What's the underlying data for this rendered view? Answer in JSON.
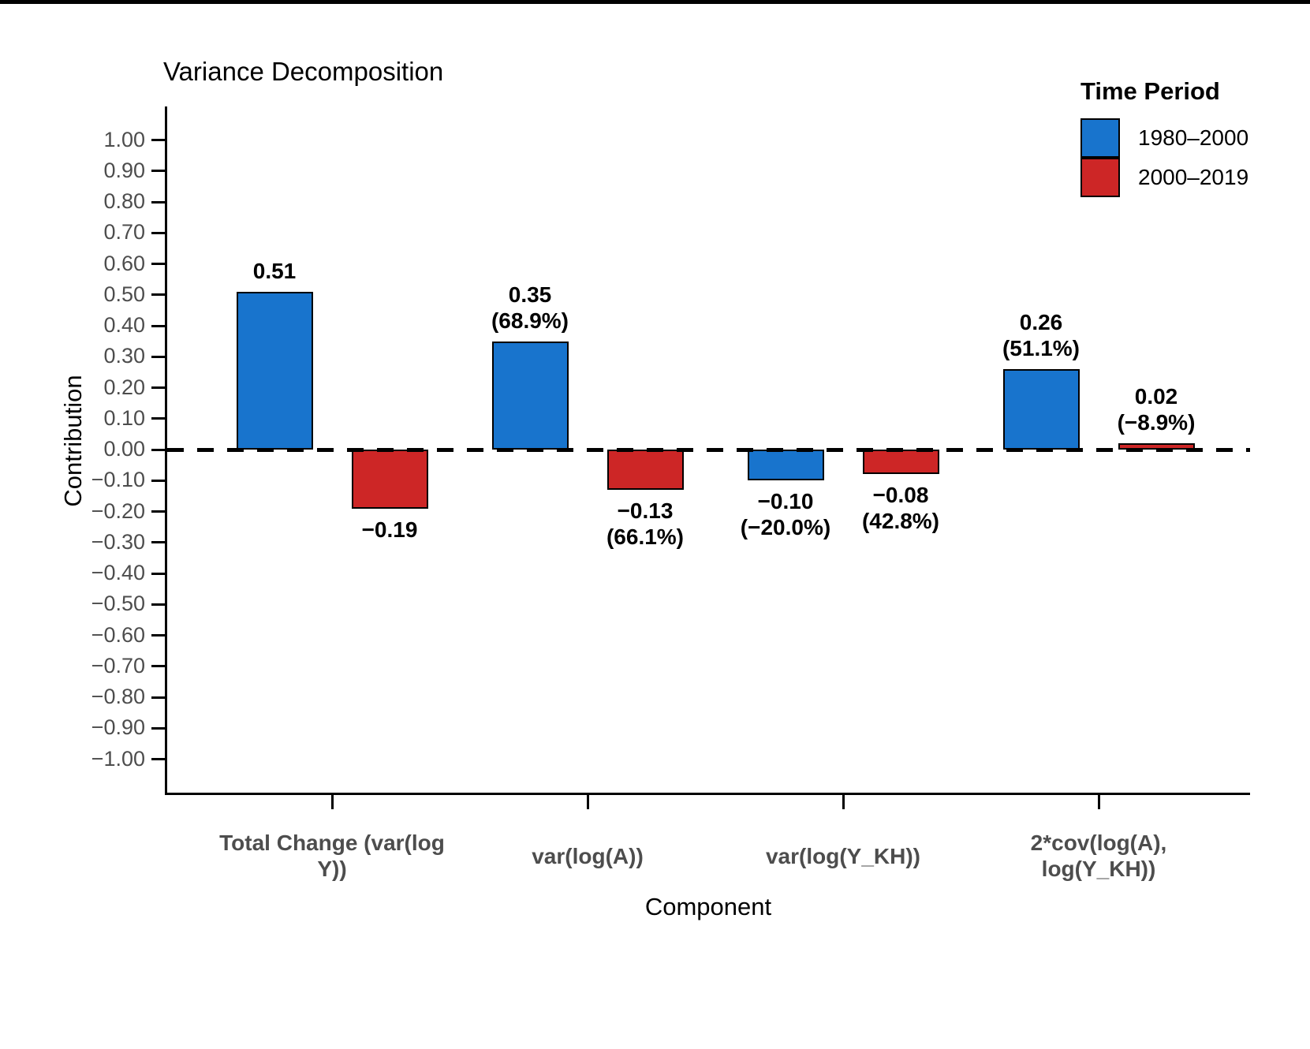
{
  "chart_data": {
    "type": "bar",
    "title": "Variance Decomposition",
    "xlabel": "Component",
    "ylabel": "Contribution",
    "ylim": [
      -1.0,
      1.0
    ],
    "ytick_step": 0.1,
    "ytick_values": [
      1.0,
      0.9,
      0.8,
      0.7,
      0.6,
      0.5,
      0.4,
      0.3,
      0.2,
      0.1,
      0.0,
      -0.1,
      -0.2,
      -0.3,
      -0.4,
      -0.5,
      -0.6,
      -0.7,
      -0.8,
      -0.9,
      -1.0
    ],
    "ytick_labels": [
      "1.00",
      "0.90",
      "0.80",
      "0.70",
      "0.60",
      "0.50",
      "0.40",
      "0.30",
      "0.20",
      "0.10",
      "0.00",
      "−0.10",
      "−0.20",
      "−0.30",
      "−0.40",
      "−0.50",
      "−0.60",
      "−0.70",
      "−0.80",
      "−0.90",
      "−1.00"
    ],
    "grid": "off",
    "zero_reference_line": "dashed",
    "legend": {
      "title": "Time Period",
      "position": "top-right",
      "entries": [
        {
          "label": "1980–2000",
          "color": "#1874CD"
        },
        {
          "label": "2000–2019",
          "color": "#CD2626"
        }
      ]
    },
    "categories": [
      [
        "Total Change",
        "(var(log Y))"
      ],
      [
        "var(log(A))"
      ],
      [
        "var(log(Y_KH))"
      ],
      [
        "2*cov(log(A),",
        "log(Y_KH))"
      ]
    ],
    "series": [
      {
        "name": "1980–2000",
        "color": "#1874CD",
        "values": [
          0.51,
          0.35,
          -0.1,
          0.26
        ],
        "bar_labels": [
          [
            "0.51"
          ],
          [
            "0.35",
            "(68.9%)"
          ],
          [
            "−0.10",
            "(−20.0%)"
          ],
          [
            "0.26",
            "(51.1%)"
          ]
        ]
      },
      {
        "name": "2000–2019",
        "color": "#CD2626",
        "values": [
          -0.19,
          -0.13,
          -0.08,
          0.02
        ],
        "bar_labels": [
          [
            "−0.19"
          ],
          [
            "−0.13",
            "(66.1%)"
          ],
          [
            "−0.08",
            "(42.8%)"
          ],
          [
            "0.02",
            "(−8.9%)"
          ]
        ]
      }
    ]
  },
  "page": {
    "background_color": "#ffffff",
    "top_border_color": "#000000",
    "axis_color": "#000000",
    "tick_label_color": "#4D4D4D"
  }
}
